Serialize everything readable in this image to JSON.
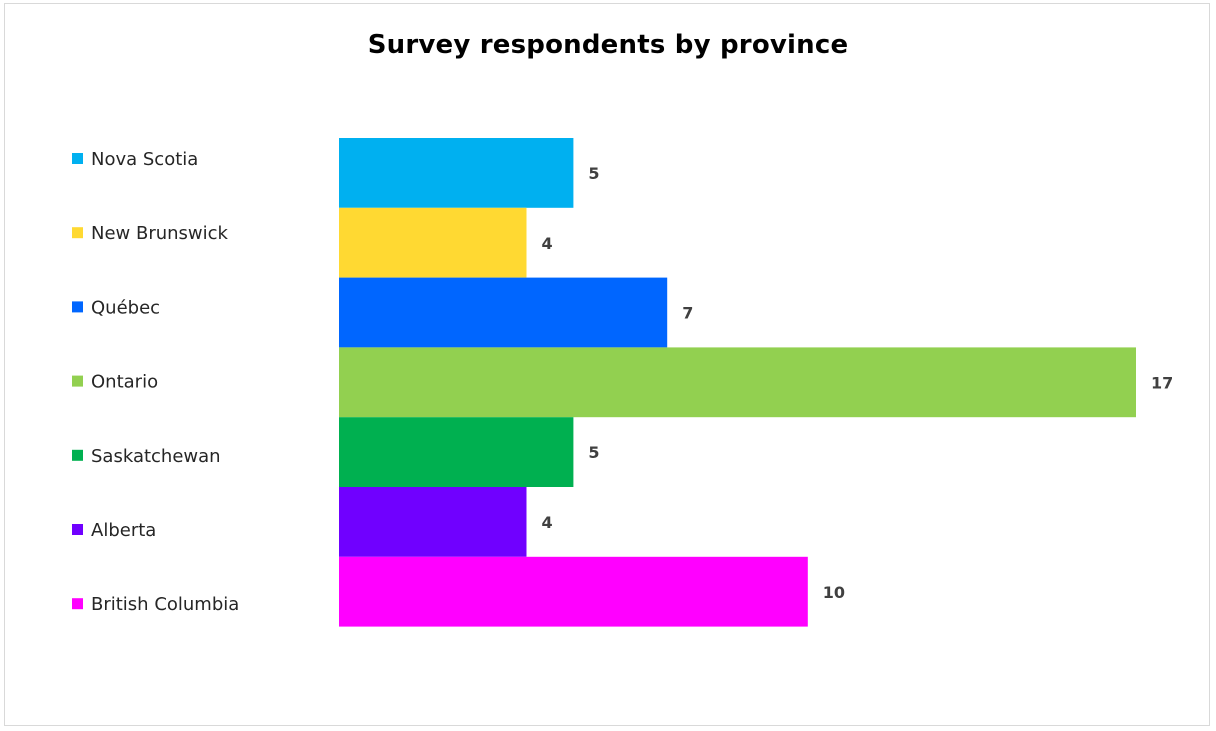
{
  "chart_data": {
    "type": "bar",
    "orientation": "horizontal",
    "title": "Survey respondents by province",
    "xlabel": "",
    "ylabel": "",
    "grid": false,
    "legend_position": "left",
    "xlim": [
      0,
      17
    ],
    "categories": [
      "Nova Scotia",
      "New Brunswick",
      "Québec",
      "Ontario",
      "Saskatchewan",
      "Alberta",
      "British Columbia"
    ],
    "values": [
      5,
      4,
      7,
      17,
      5,
      4,
      10
    ],
    "colors": [
      "#00B0F0",
      "#FFD932",
      "#0066FF",
      "#92D050",
      "#00B050",
      "#7000FF",
      "#FF00FF"
    ]
  }
}
